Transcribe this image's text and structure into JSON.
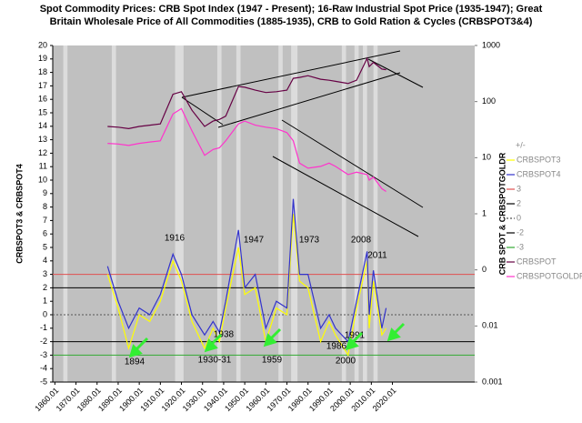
{
  "chart_data": {
    "type": "line",
    "title_lines": [
      "Spot Commodity Prices:  CRB Spot Index (1947 - Present); 16-Raw Industrial Spot Price (1935-1947); Great",
      "Britain Wholesale Price of All Commodities (1885-1935), CRB to Gold Ration & Cycles (CRBSPOT3&4)"
    ],
    "y_label": "CRBSPOT3 & CRBSPOT4",
    "y2_label": "CRB SPOT & CRBSPOTGOLDR",
    "legend_title": "+/-",
    "xlim": [
      1859,
      2059
    ],
    "xticks": [
      1860.01,
      1870.01,
      1880.01,
      1890.01,
      1900.01,
      1910.01,
      1920.01,
      1930.01,
      1940.01,
      1950.01,
      1960.01,
      1970.01,
      1980.01,
      1990.01,
      2000.01,
      2010.01,
      2020.01
    ],
    "ylim": [
      -5,
      20
    ],
    "yticks": [
      -5,
      -4,
      -3,
      -2,
      -1,
      0,
      1,
      2,
      3,
      4,
      5,
      6,
      7,
      8,
      9,
      10,
      11,
      12,
      13,
      14,
      15,
      16,
      17,
      18,
      19,
      20
    ],
    "y2lim": [
      0.001,
      1000
    ],
    "y2_log": true,
    "y2ticks": [
      0.001,
      0.01,
      {
        "value": 0.1,
        "label": "0"
      },
      1,
      10,
      100,
      1000
    ],
    "x": [
      1885,
      1890,
      1895,
      1900,
      1905,
      1910,
      1916,
      1920,
      1925,
      1931,
      1935,
      1938,
      1941,
      1947,
      1950,
      1955,
      1960,
      1965,
      1970,
      1973,
      1976,
      1980,
      1986,
      1990,
      1993,
      1999,
      2003,
      2008,
      2009,
      2011,
      2015,
      2017
    ],
    "series": [
      {
        "name": "CRBSPOT3",
        "color": "#ffff00",
        "values": [
          3,
          0.5,
          -2.5,
          0,
          -0.5,
          1,
          4,
          2.5,
          -0.5,
          -2.5,
          -1,
          -2,
          0.5,
          5,
          1.5,
          2,
          -2,
          0.5,
          0,
          7.5,
          2.5,
          2,
          -2,
          -0.5,
          -1.5,
          -3,
          0.5,
          4,
          -1,
          2.5,
          -1.5,
          -1
        ]
      },
      {
        "name": "CRBSPOT4",
        "color": "#3333cc",
        "values": [
          3.6,
          1,
          -1,
          0.5,
          0,
          1.5,
          4.5,
          3,
          0,
          -1.5,
          -0.5,
          -1.3,
          1,
          6.3,
          2,
          3,
          -1,
          1,
          0.5,
          8.6,
          3,
          3,
          -1,
          0,
          -1,
          -2,
          1,
          4.7,
          0,
          3.3,
          -1,
          0.5
        ]
      },
      {
        "name": "CRBSPOT",
        "color": "#660044",
        "axis": "y2",
        "values": [
          36,
          35,
          33,
          36,
          38,
          40,
          135,
          150,
          70,
          36,
          45,
          48,
          55,
          185,
          180,
          160,
          145,
          150,
          160,
          260,
          270,
          290,
          250,
          240,
          230,
          210,
          240,
          590,
          420,
          500,
          380,
          370
        ]
      },
      {
        "name": "CRBSPOTGOLDR",
        "color": "#ff33cc",
        "axis": "y2",
        "values": [
          18,
          17.5,
          16.5,
          18,
          19,
          20,
          60,
          75,
          30,
          11,
          14,
          15,
          20,
          40,
          45,
          38,
          35,
          33,
          28,
          20,
          8,
          6.5,
          7,
          8,
          7,
          5,
          5.5,
          5,
          4,
          4.5,
          2.8,
          2.5
        ]
      }
    ],
    "reference_lines": [
      {
        "name": "3",
        "value": 3,
        "color": "#e05050"
      },
      {
        "name": "2",
        "value": 2,
        "color": "#000000"
      },
      {
        "name": "0",
        "value": 0,
        "color": "#555555",
        "dashed": true
      },
      {
        "name": "-2",
        "value": -2,
        "color": "#000000"
      },
      {
        "name": "-3",
        "value": -3,
        "color": "#33aa33"
      }
    ],
    "cycle_bands": [
      [
        1864,
        1866
      ],
      [
        1887,
        1889
      ],
      [
        1917,
        1921
      ],
      [
        1937,
        1939
      ],
      [
        1946,
        1948
      ],
      [
        1966,
        1968
      ],
      [
        1972,
        1975
      ],
      [
        1996,
        1998
      ],
      [
        2002,
        2004
      ],
      [
        2006,
        2008
      ],
      [
        2011,
        2013
      ]
    ],
    "annotations": [
      "1894",
      "1916",
      "1930-31",
      "1938",
      "1947",
      "1959",
      "1973",
      "1986",
      "1991",
      "2000",
      "2008",
      "2011"
    ]
  }
}
